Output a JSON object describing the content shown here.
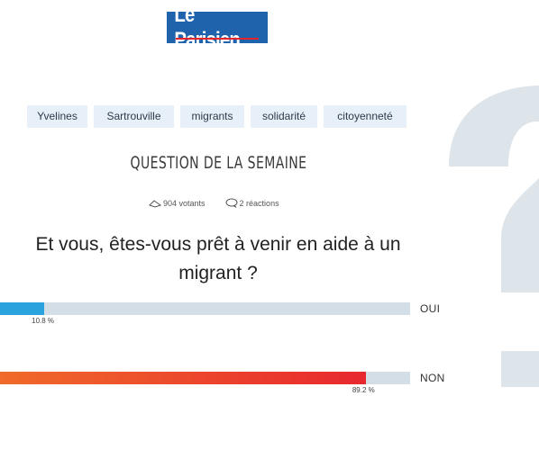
{
  "logo": {
    "text": "Le Parisien"
  },
  "tags": [
    "Yvelines",
    "Sartrouville",
    "migrants",
    "solidarité",
    "citoyenneté"
  ],
  "poll": {
    "heading": "QUESTION DE LA SEMAINE",
    "votes": "904 votants",
    "reactions": "2 réactions",
    "question_line1": "Et vous, êtes-vous prêt à venir en aide à un",
    "question_line2": "migrant ?",
    "answers": [
      {
        "label": "OUI",
        "percent_text": "10.8 %",
        "percent": 10.8,
        "color": "#2aa3dc"
      },
      {
        "label": "NON",
        "percent_text": "89.2 %",
        "percent": 89.2,
        "color_start": "#f06a2a",
        "color_end": "#e8282e"
      }
    ]
  },
  "colors": {
    "brand": "#1f63ad",
    "track": "#d4dee6",
    "tag_bg": "#e7f0f8"
  }
}
